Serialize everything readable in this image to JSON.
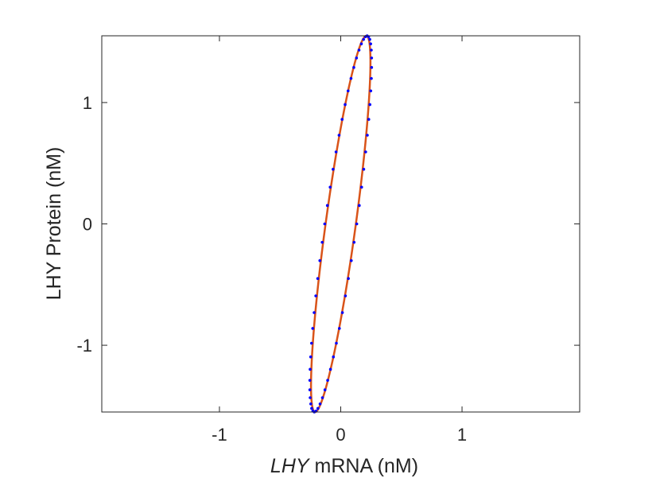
{
  "chart_data": {
    "type": "line",
    "title": "",
    "xlabel_italic": "LHY",
    "xlabel_rest": " mRNA (nM)",
    "ylabel": "LHY Protein (nM)",
    "xlim": [
      -1.97,
      1.97
    ],
    "ylim": [
      -1.55,
      1.55
    ],
    "xticks": [
      -1,
      0,
      1
    ],
    "xtick_labels": [
      "-1",
      "0",
      "1"
    ],
    "yticks": [
      -1,
      0,
      1
    ],
    "ytick_labels": [
      "-1",
      "0",
      "1"
    ],
    "grid": false,
    "legend": "none",
    "series": [
      {
        "kind": "curve",
        "style": "solid line",
        "color": "#D95319",
        "shape": "closed ellipse",
        "center": [
          0,
          0
        ],
        "x_amplitude": 0.245,
        "y_amplitude": 1.55,
        "phase_lag": 0.535
      },
      {
        "kind": "markers",
        "style": "dots",
        "color": "#0000FF",
        "shape": "closed ellipse",
        "center": [
          0,
          0
        ],
        "x_amplitude": 0.255,
        "y_amplitude": 1.55,
        "phase_lag": 0.545,
        "point_count": 64
      }
    ]
  }
}
